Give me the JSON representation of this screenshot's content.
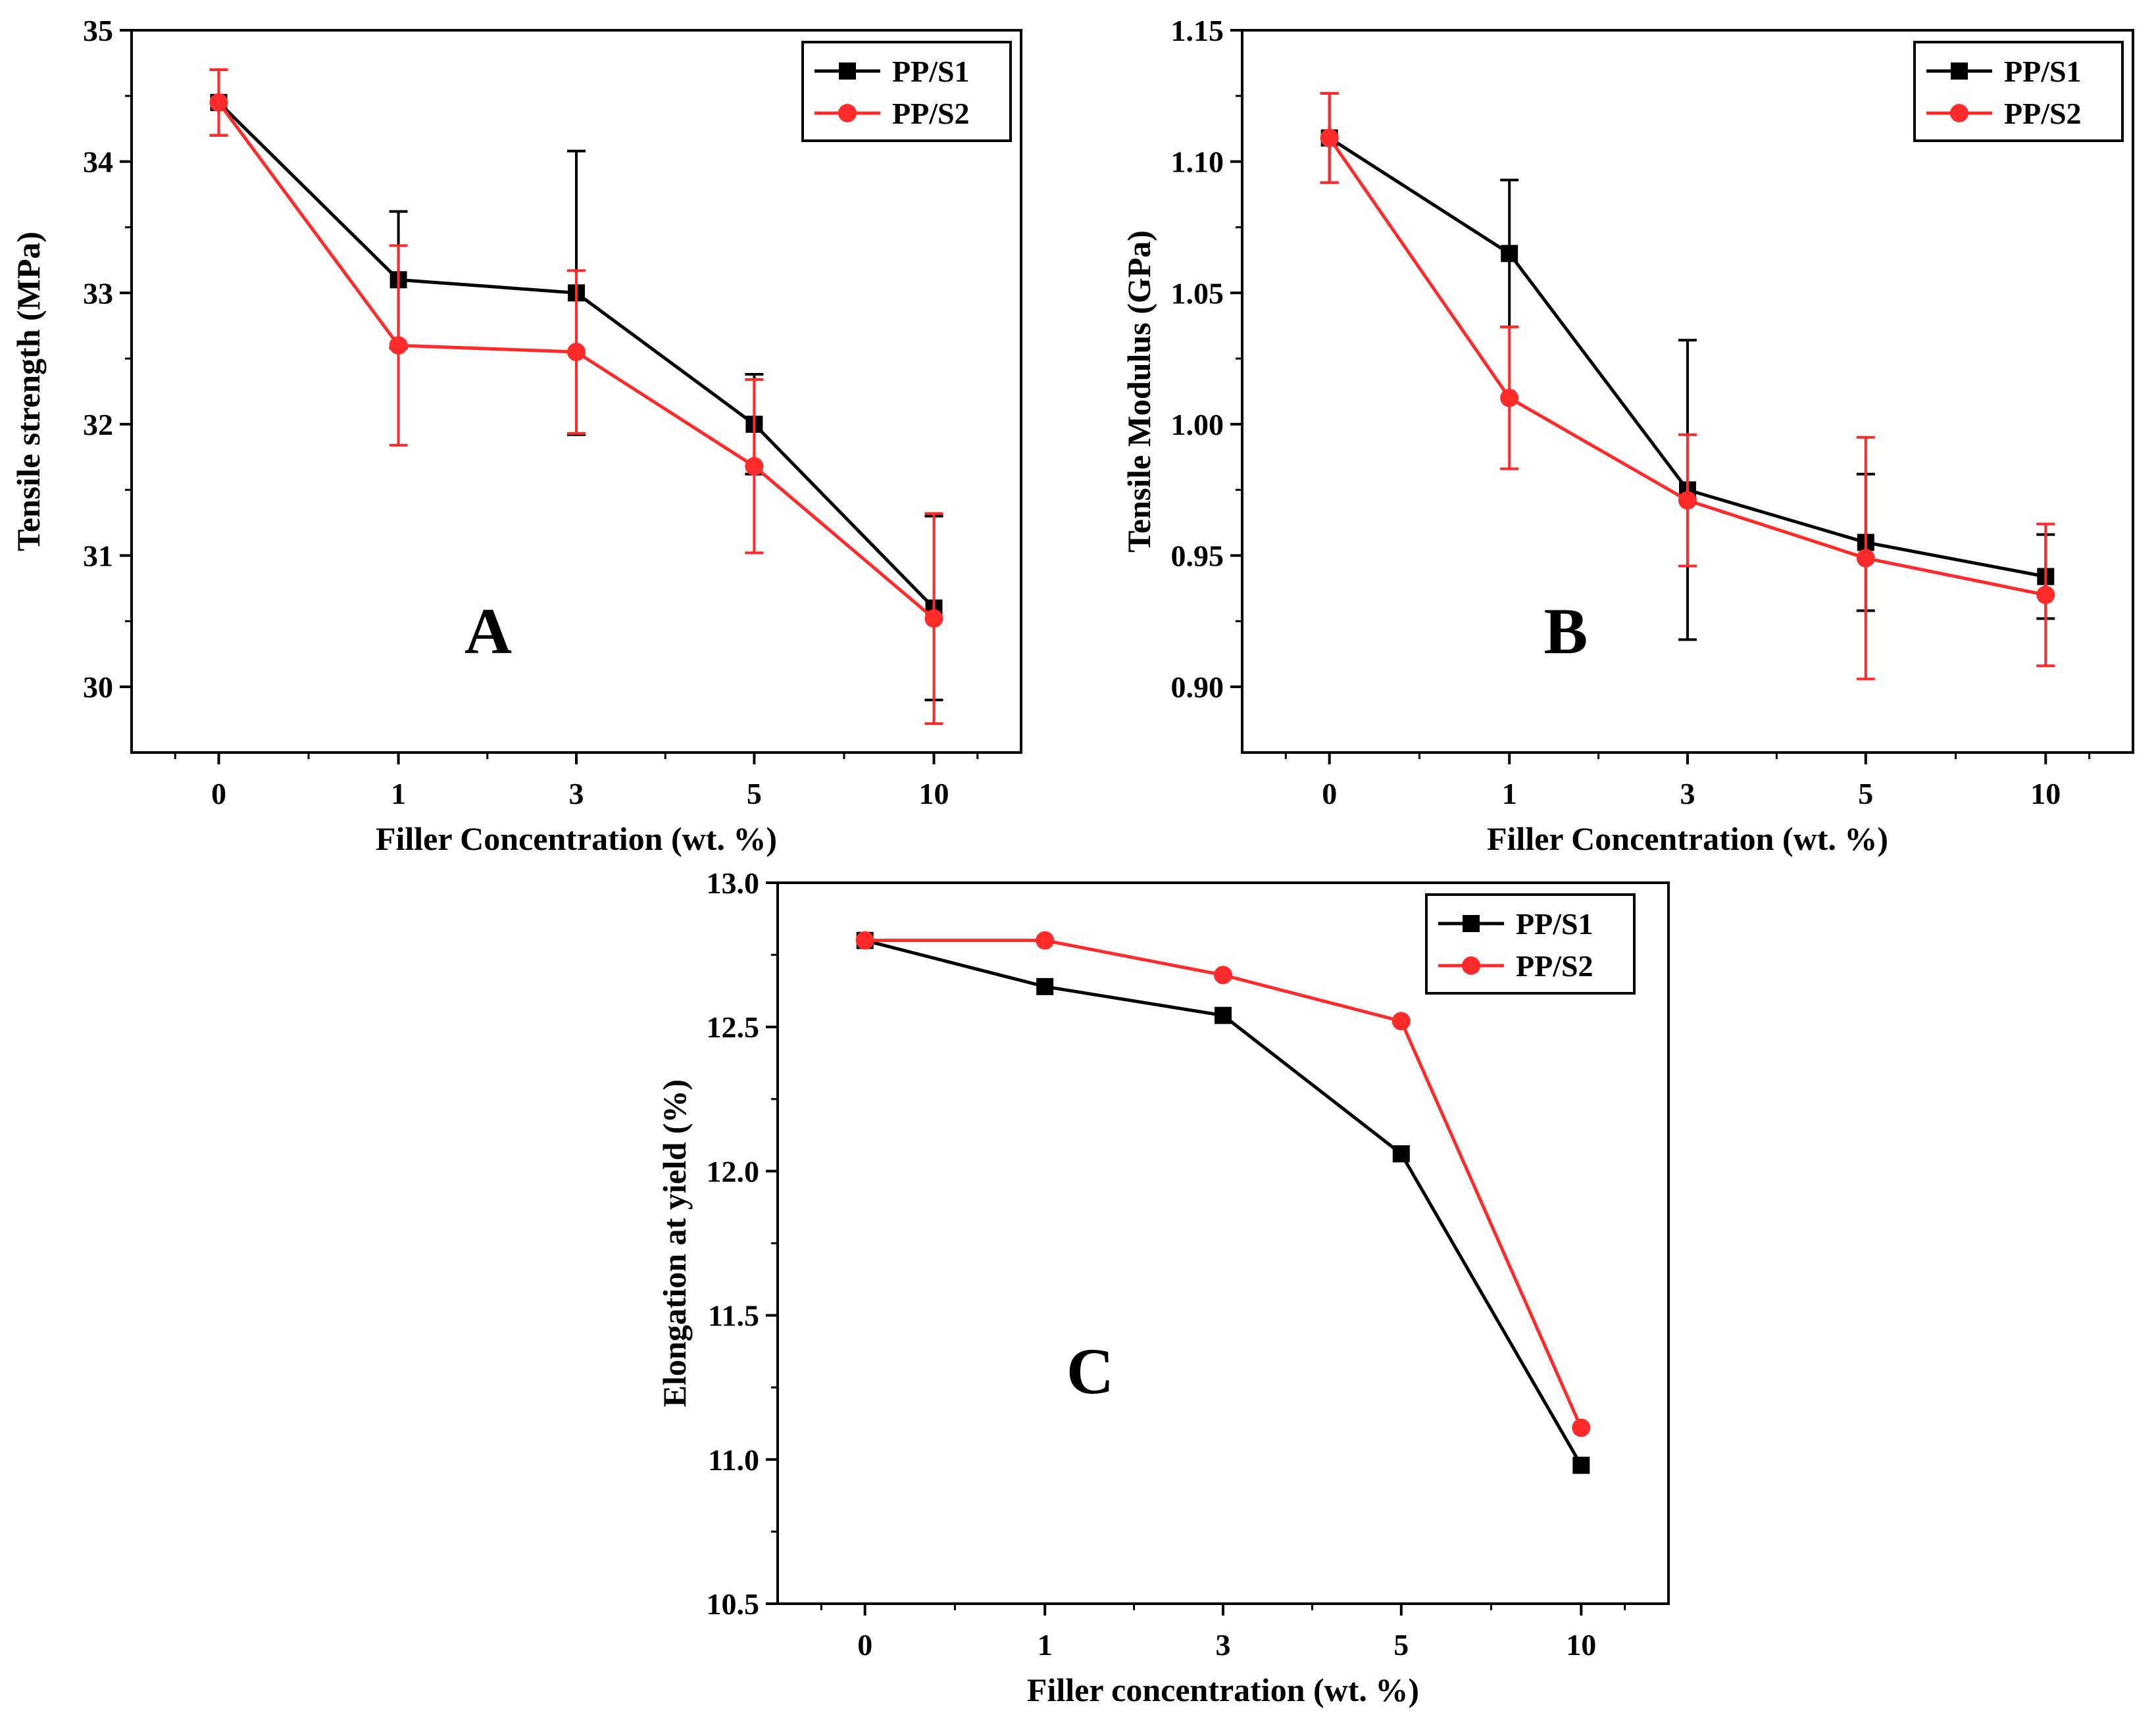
{
  "colors": {
    "PP/S1": "#000000",
    "PP/S2": "#ff2a2a"
  },
  "chart_data": [
    {
      "type": "line",
      "panel": "A",
      "categories": [
        "0",
        "1",
        "3",
        "5",
        "10"
      ],
      "xlabel": "Filler Concentration (wt. %)",
      "ylabel": "Tensile strength (MPa)",
      "ylim": [
        29.5,
        35
      ],
      "yticks": [
        30,
        31,
        32,
        33,
        34,
        35
      ],
      "legend_position": "top-right",
      "grid": false,
      "series": [
        {
          "name": "PP/S1",
          "marker": "square",
          "values": [
            34.45,
            33.1,
            33.0,
            32.0,
            30.6
          ],
          "errors": [
            0.25,
            0.52,
            1.08,
            0.38,
            0.7
          ]
        },
        {
          "name": "PP/S2",
          "marker": "circle",
          "values": [
            34.45,
            32.6,
            32.55,
            31.68,
            30.52
          ],
          "errors": [
            0.25,
            0.76,
            0.62,
            0.66,
            0.8
          ]
        }
      ]
    },
    {
      "type": "line",
      "panel": "B",
      "categories": [
        "0",
        "1",
        "3",
        "5",
        "10"
      ],
      "xlabel": "Filler Concentration (wt. %)",
      "ylabel": "Tensile Modulus (GPa)",
      "ylim": [
        0.875,
        1.15
      ],
      "yticks": [
        "0.90",
        "0.95",
        "1.00",
        "1.05",
        "1.10",
        "1.15"
      ],
      "legend_position": "top-right",
      "grid": false,
      "series": [
        {
          "name": "PP/S1",
          "marker": "square",
          "values": [
            1.109,
            1.065,
            0.975,
            0.955,
            0.942
          ],
          "errors": [
            0.017,
            0.028,
            0.057,
            0.026,
            0.016
          ]
        },
        {
          "name": "PP/S2",
          "marker": "circle",
          "values": [
            1.109,
            1.01,
            0.971,
            0.949,
            0.935
          ],
          "errors": [
            0.017,
            0.027,
            0.025,
            0.046,
            0.027
          ]
        }
      ]
    },
    {
      "type": "line",
      "panel": "C",
      "categories": [
        "0",
        "1",
        "3",
        "5",
        "10"
      ],
      "xlabel": "Filler concentration (wt. %)",
      "ylabel": "Elongation at yield (%)",
      "ylim": [
        10.5,
        13.0
      ],
      "yticks": [
        "10.5",
        "11.0",
        "11.5",
        "12.0",
        "12.5",
        "13.0"
      ],
      "legend_position": "top-right",
      "grid": false,
      "series": [
        {
          "name": "PP/S1",
          "marker": "square",
          "values": [
            12.8,
            12.64,
            12.54,
            12.06,
            10.98
          ]
        },
        {
          "name": "PP/S2",
          "marker": "circle",
          "values": [
            12.8,
            12.8,
            12.68,
            12.52,
            11.11
          ]
        }
      ]
    }
  ]
}
